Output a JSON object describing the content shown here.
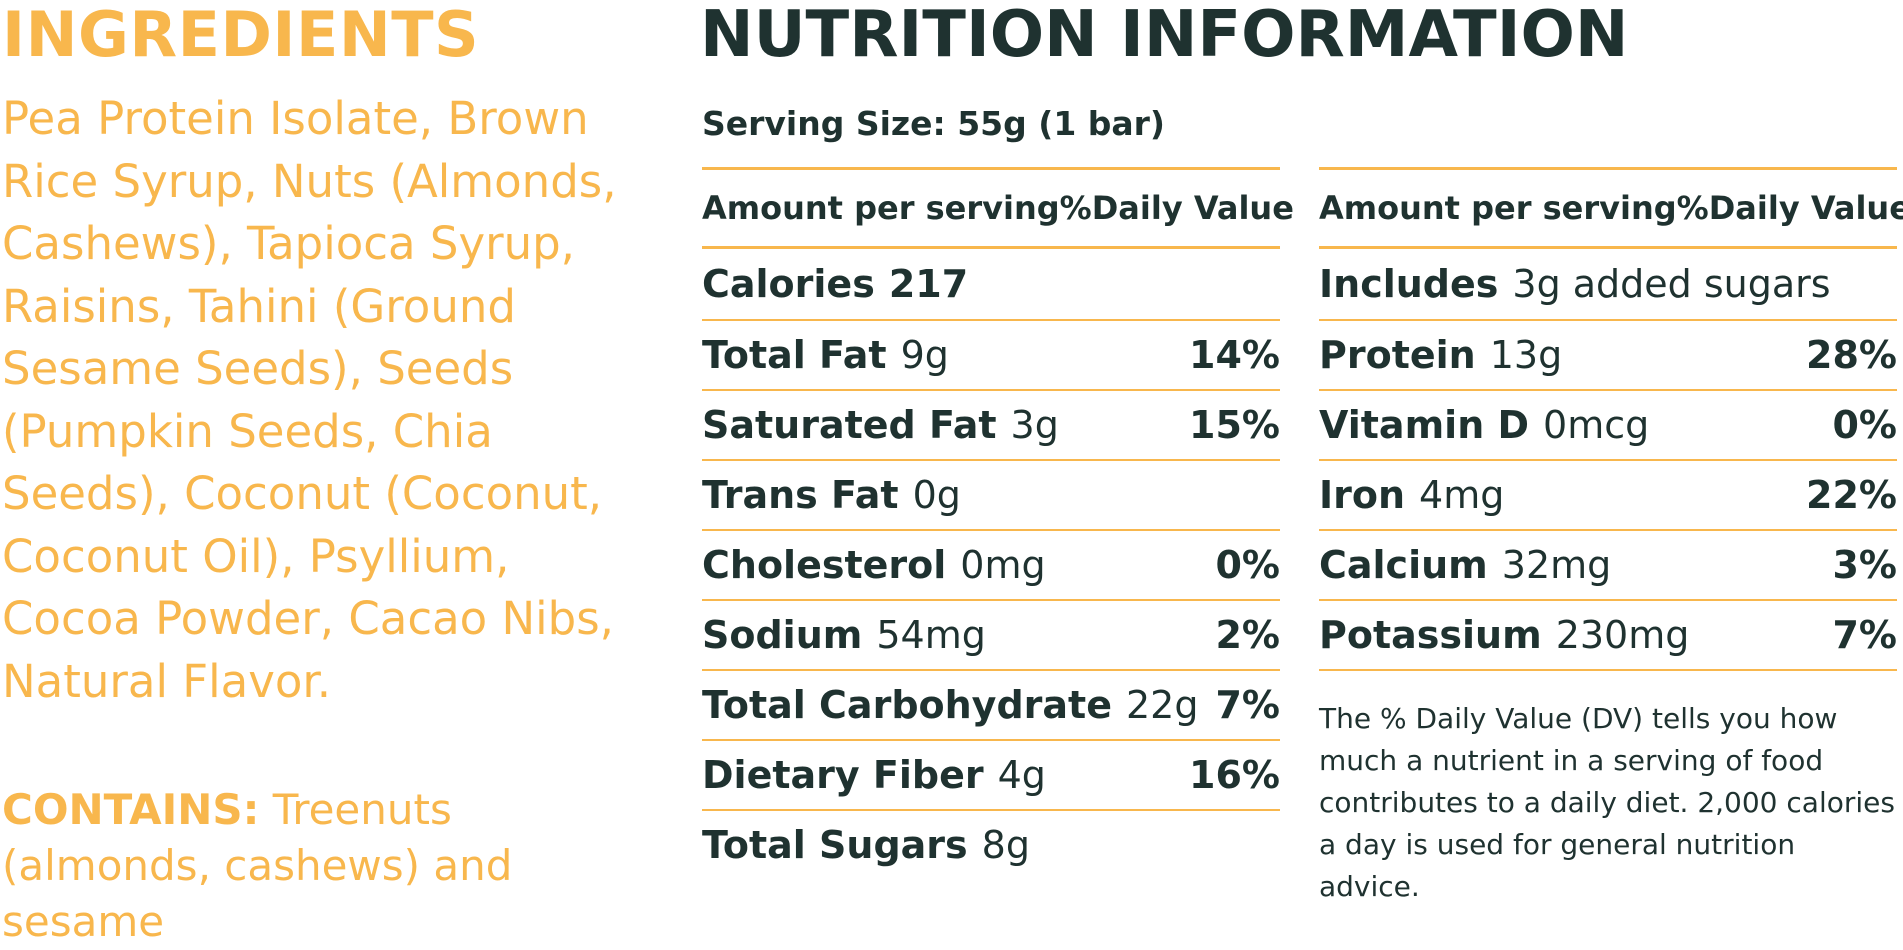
{
  "ingredients": {
    "title": "INGREDIENTS",
    "text": "Pea Protein Isolate, Brown Rice Syrup, Nuts (Almonds, Cashews), Tapioca Syrup, Raisins, Tahini (Ground Sesame Seeds), Seeds (Pumpkin Seeds, Chia Seeds), Coconut (Coconut, Coconut Oil), Psyllium, Cocoa Powder, Cacao Nibs, Natural Flavor.",
    "contains_label": "CONTAINS:",
    "contains_text": "Treenuts (almonds, cashews) and sesame"
  },
  "nutrition": {
    "title": "NUTRITION INFORMATION",
    "serving_size": "Serving Size: 55g  (1 bar)",
    "left_table": {
      "header_amount": "Amount per serving",
      "header_dv": "%Daily Value",
      "rows": [
        {
          "name": "Calories",
          "amount": "217",
          "dv": ""
        },
        {
          "name": "Total Fat",
          "amount": "9g",
          "dv": "14%"
        },
        {
          "name": "Saturated Fat",
          "amount": "3g",
          "dv": "15%"
        },
        {
          "name": "Trans Fat",
          "amount": "0g",
          "dv": ""
        },
        {
          "name": "Cholesterol",
          "amount": "0mg",
          "dv": "0%"
        },
        {
          "name": "Sodium",
          "amount": "54mg",
          "dv": "2%"
        },
        {
          "name": "Total Carbohydrate",
          "amount": "22g",
          "dv": "7%"
        },
        {
          "name": "Dietary Fiber",
          "amount": "4g",
          "dv": "16%"
        },
        {
          "name": "Total Sugars",
          "amount": "8g",
          "dv": ""
        }
      ]
    },
    "right_table": {
      "header_amount": "Amount per serving",
      "header_dv": "%Daily Value",
      "rows": [
        {
          "name": "Includes",
          "amount": "3g added sugars",
          "dv": ""
        },
        {
          "name": "Protein",
          "amount": "13g",
          "dv": "28%"
        },
        {
          "name": "Vitamin D",
          "amount": "0mcg",
          "dv": "0%"
        },
        {
          "name": "Iron",
          "amount": "4mg",
          "dv": "22%"
        },
        {
          "name": "Calcium",
          "amount": "32mg",
          "dv": "3%"
        },
        {
          "name": "Potassium",
          "amount": "230mg",
          "dv": "7%"
        }
      ]
    },
    "footnote": "The % Daily Value (DV) tells you how much a nutrient in a serving of food contributes to a daily diet. 2,000 calories a day is used for general nutrition advice."
  },
  "colors": {
    "accent_orange": "#f8b74d",
    "text_dark": "#1f3230"
  }
}
